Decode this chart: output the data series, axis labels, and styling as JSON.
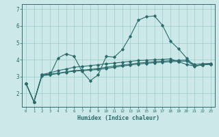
{
  "xlabel": "Humidex (Indice chaleur)",
  "ylabel": "",
  "bg_color": "#cce8e8",
  "grid_color": "#99cccc",
  "line_color": "#2a6b6b",
  "xlim": [
    -0.5,
    23.5
  ],
  "ylim": [
    1.2,
    7.3
  ],
  "xticks": [
    0,
    1,
    2,
    3,
    4,
    5,
    6,
    7,
    8,
    9,
    10,
    11,
    12,
    13,
    14,
    15,
    16,
    17,
    18,
    19,
    20,
    21,
    22,
    23
  ],
  "yticks": [
    2,
    3,
    4,
    5,
    6,
    7
  ],
  "series": [
    [
      2.6,
      1.5,
      3.1,
      3.1,
      4.1,
      4.35,
      4.2,
      3.3,
      2.75,
      3.1,
      4.2,
      4.15,
      4.6,
      5.4,
      6.35,
      6.55,
      6.6,
      6.05,
      5.1,
      4.65,
      4.1,
      3.6,
      3.7,
      3.75
    ],
    [
      2.6,
      1.5,
      3.1,
      3.15,
      3.2,
      3.28,
      3.35,
      3.38,
      3.42,
      3.48,
      3.55,
      3.62,
      3.68,
      3.74,
      3.8,
      3.84,
      3.88,
      3.91,
      3.94,
      3.96,
      3.98,
      3.72,
      3.76,
      3.78
    ],
    [
      2.6,
      1.5,
      3.05,
      3.1,
      3.18,
      3.25,
      3.32,
      3.35,
      3.38,
      3.42,
      3.48,
      3.55,
      3.62,
      3.68,
      3.74,
      3.78,
      3.82,
      3.85,
      3.88,
      3.9,
      3.92,
      3.63,
      3.7,
      3.73
    ],
    [
      2.6,
      1.5,
      3.12,
      3.22,
      3.35,
      3.45,
      3.55,
      3.6,
      3.65,
      3.7,
      3.76,
      3.8,
      3.85,
      3.9,
      3.95,
      3.97,
      4.0,
      4.02,
      4.05,
      3.88,
      3.72,
      3.62,
      3.7,
      3.73
    ]
  ]
}
